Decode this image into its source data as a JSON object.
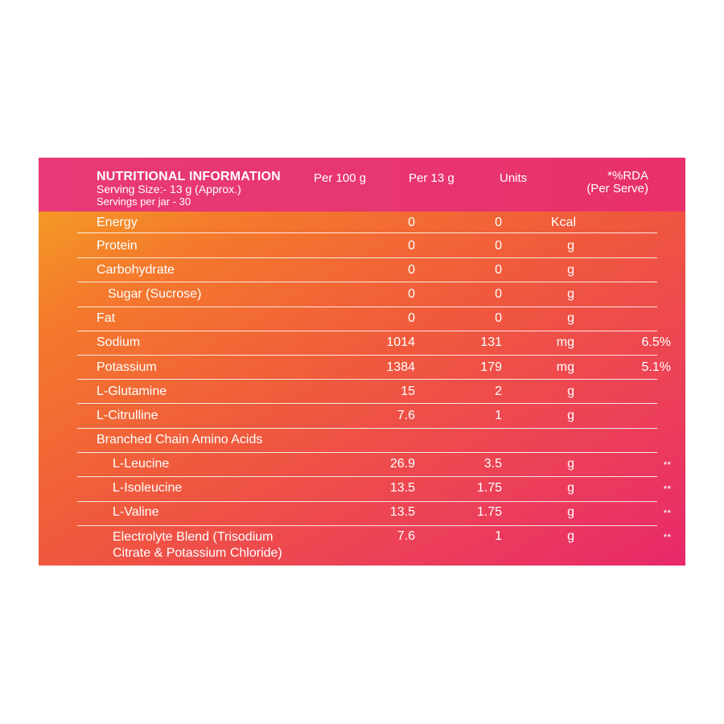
{
  "header": {
    "title": "NUTRITIONAL INFORMATION",
    "serving_size": "Serving Size:- 13 g (Approx.)",
    "servings_per_jar": "Servings per jar - 30",
    "col_per100": "Per 100 g",
    "col_per13": "Per 13 g",
    "col_units": "Units",
    "col_rda_line1": "*%RDA",
    "col_rda_line2": "(Per Serve)"
  },
  "rows": [
    {
      "name": "Energy",
      "per100": "0",
      "per13": "0",
      "unit": "Kcal",
      "rda": ""
    },
    {
      "name": "Protein",
      "per100": "0",
      "per13": "0",
      "unit": "g",
      "rda": ""
    },
    {
      "name": "Carbohydrate",
      "per100": "0",
      "per13": "0",
      "unit": "g",
      "rda": ""
    },
    {
      "name": "Sugar (Sucrose)",
      "per100": "0",
      "per13": "0",
      "unit": "g",
      "rda": ""
    },
    {
      "name": "Fat",
      "per100": "0",
      "per13": "0",
      "unit": "g",
      "rda": ""
    },
    {
      "name": "Sodium",
      "per100": "1014",
      "per13": "131",
      "unit": "mg",
      "rda": "6.5%"
    },
    {
      "name": "Potassium",
      "per100": "1384",
      "per13": "179",
      "unit": "mg",
      "rda": "5.1%"
    },
    {
      "name": "L-Glutamine",
      "per100": "15",
      "per13": "2",
      "unit": "g",
      "rda": ""
    },
    {
      "name": "L-Citrulline",
      "per100": "7.6",
      "per13": "1",
      "unit": "g",
      "rda": ""
    },
    {
      "name": "Branched Chain Amino Acids",
      "per100": "",
      "per13": "",
      "unit": "",
      "rda": ""
    },
    {
      "name": "L-Leucine",
      "per100": "26.9",
      "per13": "3.5",
      "unit": "g",
      "rda": "**"
    },
    {
      "name": "L-Isoleucine",
      "per100": "13.5",
      "per13": "1.75",
      "unit": "g",
      "rda": "**"
    },
    {
      "name": "L-Valine",
      "per100": "13.5",
      "per13": "1.75",
      "unit": "g",
      "rda": "**"
    },
    {
      "name_line1": "Electrolyte Blend (Trisodium",
      "name_line2": "Citrate & Potassium Chloride)",
      "per100": "7.6",
      "per13": "1",
      "unit": "g",
      "rda": "**"
    }
  ],
  "colors": {
    "header_pink": "#e8356f",
    "gradient_start": "#f5a623",
    "gradient_end": "#e8286a",
    "text": "#ffffff"
  }
}
